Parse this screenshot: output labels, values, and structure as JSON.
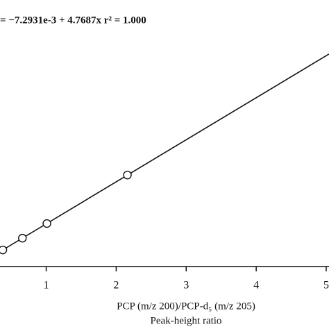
{
  "chart_data": {
    "type": "scatter",
    "annotation": "= −7.2931e-3 + 4.7687x r² = 1.000",
    "x_label": "PCP (m/z 200)/PCP-d₅ (m/z 205)",
    "x_label_2": "Peak-height ratio",
    "x": [
      0.38,
      0.66,
      1.01,
      2.16
    ],
    "values": [
      1.8,
      3.14,
      4.8,
      10.3
    ],
    "fit": {
      "intercept": -0.0072931,
      "slope": 4.7687
    },
    "xlim": [
      0.34,
      5.04
    ],
    "ylim": [
      0,
      30
    ],
    "xticks": [
      1,
      2,
      3,
      4,
      5
    ],
    "color": "#111111"
  }
}
